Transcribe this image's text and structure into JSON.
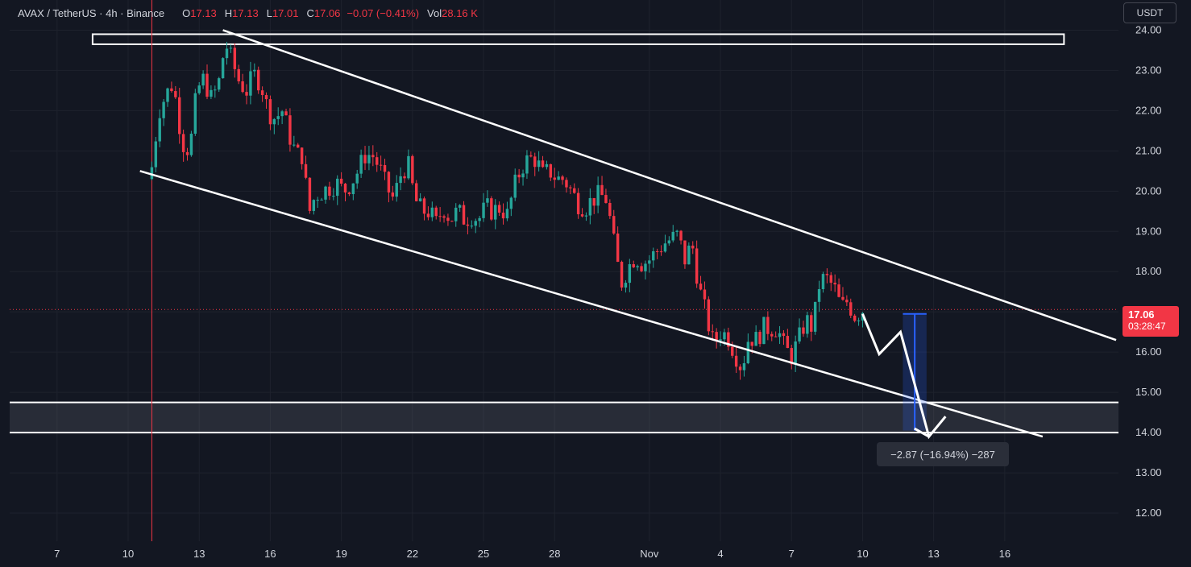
{
  "header": {
    "symbol": "AVAX / TetherUS · 4h · Binance",
    "open_label": "O",
    "open": "17.13",
    "high_label": "H",
    "high": "17.13",
    "low_label": "L",
    "low": "17.01",
    "close_label": "C",
    "close": "17.06",
    "change": "−0.07 (−0.41%)",
    "vol_label": "Vol",
    "vol": "28.16 K"
  },
  "currency_button": "USDT",
  "last_price": {
    "price": "17.06",
    "countdown": "03:28:47"
  },
  "measure_label": "−2.87 (−16.94%) −287",
  "colors": {
    "up": "#26a69a",
    "down": "#f23645",
    "background": "#131722",
    "grid": "#1e222d",
    "drawing": "#ffffff",
    "measure": "#2962ff"
  },
  "chart_data": {
    "type": "candlestick",
    "ylim": [
      11.3,
      24.75
    ],
    "yticks": [
      "24.00",
      "23.00",
      "22.00",
      "21.00",
      "20.00",
      "19.00",
      "18.00",
      "17.00",
      "16.00",
      "15.00",
      "14.00",
      "13.00",
      "12.00"
    ],
    "xticks": [
      {
        "label": "7",
        "day": 7
      },
      {
        "label": "10",
        "day": 10
      },
      {
        "label": "13",
        "day": 13
      },
      {
        "label": "16",
        "day": 16
      },
      {
        "label": "19",
        "day": 19
      },
      {
        "label": "22",
        "day": 22
      },
      {
        "label": "25",
        "day": 25
      },
      {
        "label": "28",
        "day": 28
      },
      {
        "label": "Nov",
        "day": 32
      },
      {
        "label": "4",
        "day": 35
      },
      {
        "label": "7",
        "day": 38
      },
      {
        "label": "10",
        "day": 41
      },
      {
        "label": "13",
        "day": 44
      },
      {
        "label": "16",
        "day": 47
      }
    ],
    "xlim_days": [
      5.0,
      51.8
    ],
    "first_candle_day": 11.0,
    "candles_per_day": 6,
    "close_path": [
      [
        11.0,
        20.6
      ],
      [
        11.3,
        22.0
      ],
      [
        11.6,
        22.4
      ],
      [
        11.9,
        22.7
      ],
      [
        12.1,
        21.9
      ],
      [
        12.3,
        21.2
      ],
      [
        12.6,
        21.0
      ],
      [
        12.9,
        22.5
      ],
      [
        13.2,
        22.8
      ],
      [
        13.5,
        22.3
      ],
      [
        13.8,
        22.6
      ],
      [
        14.1,
        23.7
      ],
      [
        14.4,
        23.2
      ],
      [
        14.7,
        22.7
      ],
      [
        15.0,
        22.5
      ],
      [
        15.3,
        22.9
      ],
      [
        15.6,
        22.7
      ],
      [
        15.9,
        22.0
      ],
      [
        16.2,
        21.8
      ],
      [
        16.5,
        22.0
      ],
      [
        16.8,
        21.4
      ],
      [
        17.1,
        20.9
      ],
      [
        17.4,
        20.9
      ],
      [
        17.6,
        19.4
      ],
      [
        17.9,
        19.9
      ],
      [
        18.2,
        20.0
      ],
      [
        18.5,
        20.1
      ],
      [
        18.8,
        20.2
      ],
      [
        19.1,
        20.0
      ],
      [
        19.4,
        20.2
      ],
      [
        19.7,
        20.5
      ],
      [
        20.0,
        20.9
      ],
      [
        20.3,
        20.9
      ],
      [
        20.6,
        20.6
      ],
      [
        20.9,
        20.1
      ],
      [
        21.2,
        19.8
      ],
      [
        21.5,
        20.4
      ],
      [
        21.8,
        20.7
      ],
      [
        22.1,
        19.8
      ],
      [
        22.4,
        19.5
      ],
      [
        22.7,
        19.5
      ],
      [
        23.0,
        19.2
      ],
      [
        23.3,
        19.6
      ],
      [
        23.6,
        19.3
      ],
      [
        23.9,
        19.5
      ],
      [
        24.2,
        19.3
      ],
      [
        24.5,
        19.4
      ],
      [
        24.8,
        19.3
      ],
      [
        25.1,
        19.6
      ],
      [
        25.4,
        19.5
      ],
      [
        25.7,
        19.6
      ],
      [
        26.0,
        19.4
      ],
      [
        26.3,
        20.1
      ],
      [
        26.6,
        20.6
      ],
      [
        26.9,
        20.8
      ],
      [
        27.2,
        20.8
      ],
      [
        27.5,
        20.4
      ],
      [
        27.8,
        20.5
      ],
      [
        28.1,
        20.3
      ],
      [
        28.4,
        20.3
      ],
      [
        28.7,
        20.0
      ],
      [
        29.0,
        19.7
      ],
      [
        29.3,
        19.6
      ],
      [
        29.6,
        19.8
      ],
      [
        29.9,
        19.9
      ],
      [
        30.2,
        19.8
      ],
      [
        30.5,
        18.7
      ],
      [
        30.8,
        17.7
      ],
      [
        31.1,
        18.1
      ],
      [
        31.4,
        18.4
      ],
      [
        31.7,
        18.2
      ],
      [
        32.0,
        18.3
      ],
      [
        32.3,
        18.5
      ],
      [
        32.6,
        18.7
      ],
      [
        32.9,
        18.8
      ],
      [
        33.2,
        18.9
      ],
      [
        33.5,
        18.3
      ],
      [
        33.8,
        18.7
      ],
      [
        34.1,
        17.6
      ],
      [
        34.4,
        16.9
      ],
      [
        34.7,
        16.2
      ],
      [
        35.0,
        16.5
      ],
      [
        35.3,
        16.4
      ],
      [
        35.6,
        16.0
      ],
      [
        35.9,
        15.6
      ],
      [
        36.2,
        16.4
      ],
      [
        36.5,
        16.3
      ],
      [
        36.8,
        16.6
      ],
      [
        37.1,
        16.6
      ],
      [
        37.4,
        16.6
      ],
      [
        37.7,
        16.1
      ],
      [
        38.0,
        15.9
      ],
      [
        38.3,
        16.3
      ],
      [
        38.6,
        16.8
      ],
      [
        38.9,
        16.6
      ],
      [
        39.2,
        17.8
      ],
      [
        39.5,
        17.8
      ],
      [
        39.8,
        17.6
      ],
      [
        40.1,
        17.1
      ],
      [
        40.4,
        17.3
      ],
      [
        40.6,
        16.9
      ],
      [
        40.8,
        16.95
      ],
      [
        41.0,
        17.06
      ]
    ],
    "annotations": {
      "channel_upper": [
        [
          14.0,
          24.0
        ],
        [
          51.7,
          16.3
        ]
      ],
      "channel_lower": [
        [
          10.5,
          20.5
        ],
        [
          48.6,
          13.9
        ]
      ],
      "resistance_box": [
        [
          8.5,
          23.65
        ],
        [
          49.5,
          23.9
        ]
      ],
      "support_zone": [
        14.0,
        14.75
      ],
      "red_vertical_day": 11.0,
      "current_price_line": 17.06,
      "forecast_path": [
        [
          41.0,
          16.95
        ],
        [
          41.7,
          15.95
        ],
        [
          42.6,
          16.5
        ],
        [
          43.8,
          13.9
        ],
        [
          44.5,
          14.4
        ]
      ],
      "measure_range": {
        "day_from": 42.7,
        "day_to": 43.7,
        "price_from": 16.95,
        "price_to": 14.05
      }
    }
  }
}
